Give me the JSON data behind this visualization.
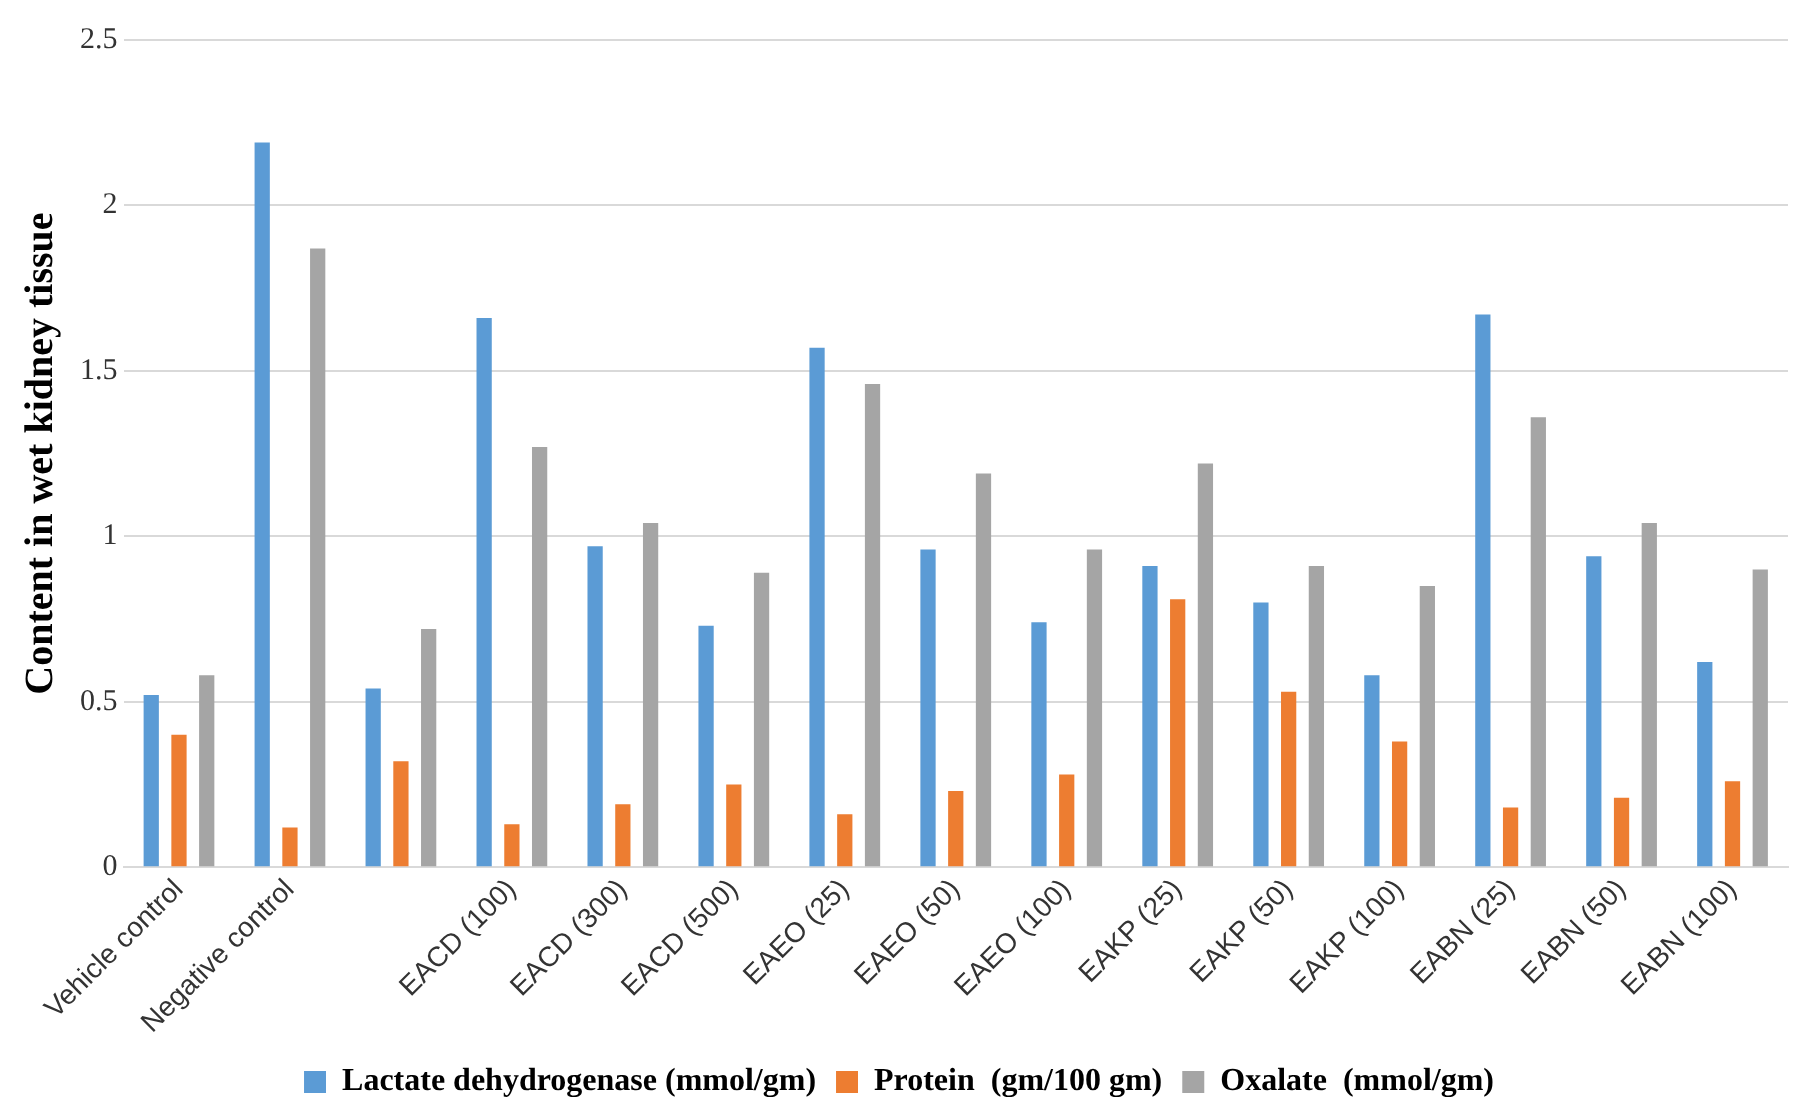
{
  "chart_data": {
    "type": "bar",
    "ylabel": "Content in wet kidney tissue",
    "categories": [
      "Vehicle control",
      "Negative control",
      null,
      "EACD (100)",
      "EACD (300)",
      "EACD (500)",
      "EAEO (25)",
      "EAEO (50)",
      "EAEO (100)",
      "EAKP (25)",
      "EAKP (50)",
      "EAKP (100)",
      "EABN (25)",
      "EABN (50)",
      "EABN (100)"
    ],
    "series": [
      {
        "name": "Lactate dehydrogenase (mmol/gm)",
        "color": "#5b9bd5",
        "values": [
          0.52,
          2.19,
          0.54,
          1.66,
          0.97,
          0.73,
          1.57,
          0.96,
          0.74,
          0.91,
          0.8,
          0.58,
          1.67,
          0.94,
          0.62
        ]
      },
      {
        "name": "Protein  (gm/100 gm)",
        "color": "#ed7d31",
        "values": [
          0.4,
          0.12,
          0.32,
          0.13,
          0.19,
          0.25,
          0.16,
          0.23,
          0.28,
          0.81,
          0.53,
          0.38,
          0.18,
          0.21,
          0.26
        ]
      },
      {
        "name": "Oxalate  (mmol/gm)",
        "color": "#a5a5a5",
        "values": [
          0.58,
          1.87,
          0.72,
          1.27,
          1.04,
          0.89,
          1.46,
          1.19,
          0.96,
          1.22,
          0.91,
          0.85,
          1.36,
          1.04,
          0.9
        ]
      }
    ],
    "ylim": [
      0,
      2.5
    ],
    "yticks": [
      0,
      0.5,
      1,
      1.5,
      2,
      2.5
    ],
    "grid": "y",
    "legend": "bottom"
  }
}
